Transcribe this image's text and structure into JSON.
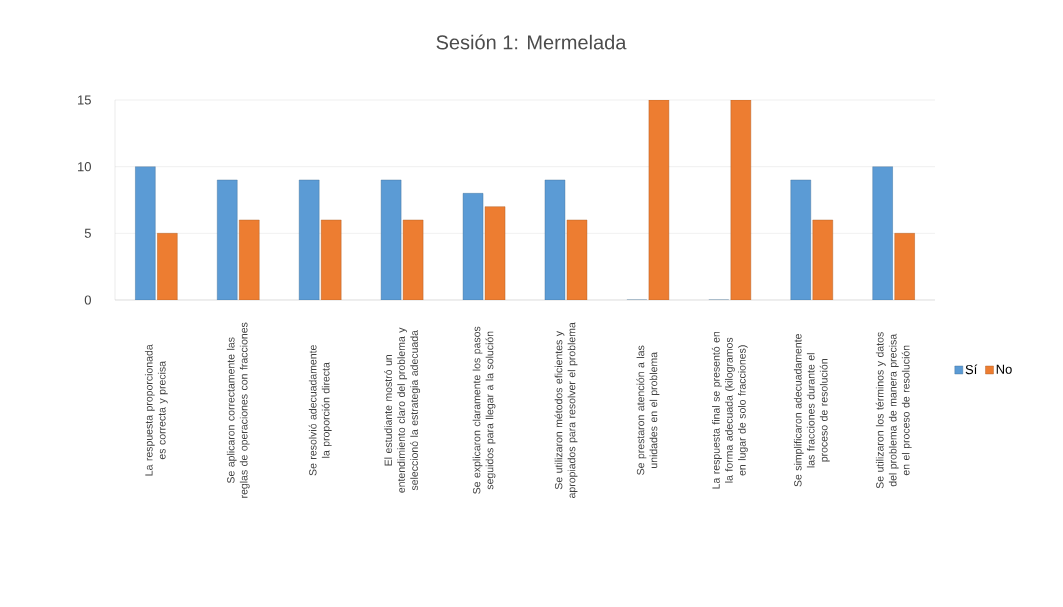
{
  "chart_data": {
    "type": "bar",
    "title": "Sesión 1: Mermelada",
    "categories": [
      "La respuesta proporcionada es correcta y precisa",
      "Se aplicaron correctamente las reglas de operaciones con fracciones",
      "Se resolvió adecuadamente la proporción directa",
      "El estudiante mostró un entendimiento claro del problema y seleccionó la estrategia adecuada",
      "Se explicaron claramente los pasos seguidos para llegar a la solución",
      "Se utilizaron métodos eficientes y apropiados para resolver el problema",
      "Se prestaron atención a las unidades en el problema",
      "La respuesta final se presentó en la forma adecuada (kilogramos en lugar de solo fracciones)",
      "Se simplificaron adecuadamente las fracciones durante el proceso de resolución",
      "Se utilizaron los términos y datos del problema de manera precisa en el proceso de resolución"
    ],
    "series": [
      {
        "name": "Sí",
        "color": "#5b9bd5",
        "values": [
          10,
          9,
          9,
          9,
          8,
          9,
          0,
          0,
          9,
          10
        ]
      },
      {
        "name": "No",
        "color": "#ed7d31",
        "values": [
          5,
          6,
          6,
          6,
          7,
          6,
          15,
          15,
          6,
          5
        ]
      }
    ],
    "ylim": [
      0,
      15
    ],
    "yticks": [
      0,
      5,
      10,
      15
    ],
    "grid": "y",
    "legend": "right"
  }
}
